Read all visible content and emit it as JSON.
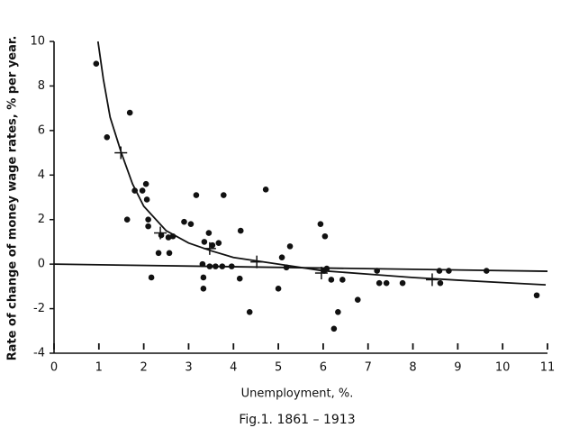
{
  "chart_data": {
    "type": "scatter",
    "caption": "Fig.1. 1861 – 1913",
    "xlabel": "Unemployment,    %.",
    "ylabel": "Rate of change of money wage rates, % per year.",
    "xlim": [
      0,
      11
    ],
    "ylim": [
      -4,
      10
    ],
    "xticks": [
      0,
      1,
      2,
      3,
      4,
      5,
      6,
      7,
      8,
      9,
      10,
      11
    ],
    "yticks": [
      -4,
      -2,
      0,
      2,
      4,
      6,
      8,
      10
    ],
    "series": [
      {
        "type": "scatter",
        "marker": "dot",
        "color": "#111111",
        "x": [
          0.94,
          1.18,
          1.69,
          1.63,
          1.8,
          1.97,
          2.05,
          2.07,
          2.1,
          2.1,
          2.17,
          2.33,
          2.39,
          2.55,
          2.57,
          2.65,
          2.9,
          3.05,
          3.17,
          3.31,
          3.33,
          3.33,
          3.35,
          3.45,
          3.47,
          3.53,
          3.6,
          3.67,
          3.75,
          3.78,
          3.96,
          4.14,
          4.16,
          4.36,
          4.72,
          5.0,
          5.08,
          5.18,
          5.26,
          5.94,
          6.04,
          6.02,
          6.08,
          6.18,
          6.24,
          6.33,
          6.43,
          6.77,
          7.2,
          7.25,
          7.41,
          7.77,
          8.59,
          8.61,
          8.8,
          9.64,
          10.76
        ],
        "values": [
          9.0,
          5.7,
          6.8,
          2.0,
          3.3,
          3.3,
          3.6,
          2.9,
          2.0,
          1.7,
          -0.6,
          0.5,
          1.3,
          1.2,
          0.5,
          1.25,
          1.9,
          1.8,
          3.1,
          0,
          -0.6,
          -1.1,
          1.0,
          1.4,
          -0.1,
          0.85,
          -0.1,
          0.95,
          -0.1,
          3.1,
          -0.1,
          -0.65,
          1.5,
          -2.15,
          3.35,
          -1.1,
          0.3,
          -0.15,
          0.8,
          1.8,
          1.25,
          -0.3,
          -0.2,
          -0.7,
          -2.9,
          -2.15,
          -0.7,
          -1.6,
          -0.3,
          -0.85,
          -0.85,
          -0.85,
          -0.3,
          -0.85,
          -0.3,
          -0.3,
          -1.4
        ]
      },
      {
        "type": "scatter",
        "marker": "cross",
        "color": "#111111",
        "x": [
          1.49,
          2.37,
          3.47,
          4.52,
          5.96,
          8.43
        ],
        "values": [
          5.0,
          1.4,
          0.7,
          0.1,
          -0.4,
          -0.7
        ]
      },
      {
        "type": "line",
        "color": "#111111",
        "x": [
          0.98,
          1.1,
          1.25,
          1.5,
          1.75,
          2,
          2.5,
          3,
          3.5,
          4,
          5,
          6,
          7,
          8,
          9,
          10,
          10.96
        ],
        "values": [
          10,
          8.3,
          6.6,
          5.0,
          3.6,
          2.6,
          1.5,
          0.95,
          0.6,
          0.3,
          0.0,
          -0.3,
          -0.45,
          -0.6,
          -0.72,
          -0.83,
          -0.93
        ]
      },
      {
        "type": "line",
        "color": "#111111",
        "x": [
          0,
          11
        ],
        "values": [
          0,
          -0.32
        ]
      }
    ]
  }
}
